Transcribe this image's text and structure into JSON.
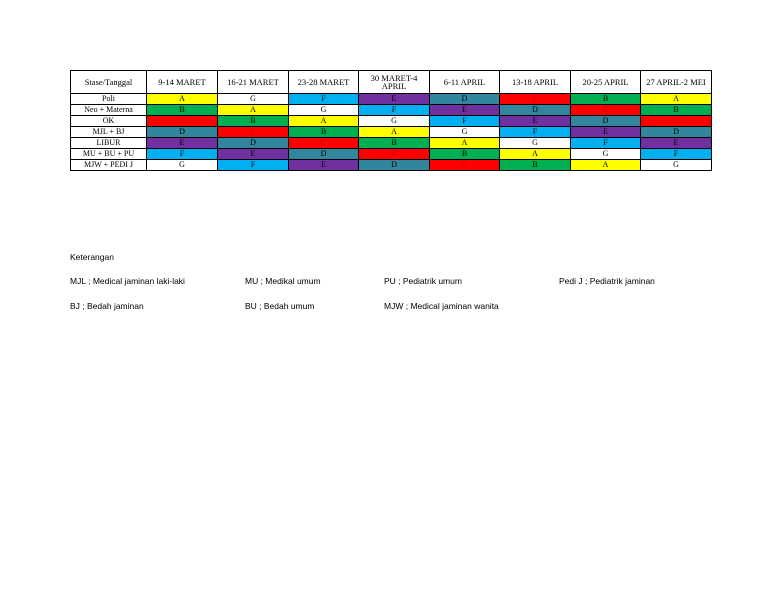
{
  "table": {
    "header": [
      "Stase/Tanggal",
      "9-14 MARET",
      "16-21 MARET",
      "23-28 MARET",
      "30 MARET-4 APRIL",
      "6-11 APRIL",
      "13-18 APRIL",
      "20-25 APRIL",
      "27 APRIL-2 MEI"
    ],
    "rows": [
      {
        "stase": "Poli",
        "cells": [
          "A",
          "G",
          "F",
          "E",
          "D",
          "C",
          "B",
          "A"
        ]
      },
      {
        "stase": "Neo + Materna",
        "cells": [
          "B",
          "A",
          "G",
          "F",
          "E",
          "D",
          "C",
          "B"
        ]
      },
      {
        "stase": "OK",
        "cells": [
          "C",
          "B",
          "A",
          "G",
          "F",
          "E",
          "D",
          "C"
        ]
      },
      {
        "stase": "MJL + BJ",
        "cells": [
          "D",
          "C",
          "B",
          "A",
          "G",
          "F",
          "E",
          "D"
        ]
      },
      {
        "stase": "LIBUR",
        "cells": [
          "E",
          "D",
          "C",
          "B",
          "A",
          "G",
          "F",
          "E"
        ]
      },
      {
        "stase": "MU + BU + PU",
        "cells": [
          "F",
          "E",
          "D",
          "C",
          "B",
          "A",
          "G",
          "F"
        ]
      },
      {
        "stase": "MJW + PEDI J",
        "cells": [
          "G",
          "F",
          "E",
          "D",
          "C",
          "B",
          "A",
          "G"
        ]
      }
    ],
    "group_colors": {
      "A": "#ffff00",
      "B": "#00b050",
      "C": "#ff0000",
      "D": "#31859c",
      "E": "#7030a0",
      "F": "#00b0f0",
      "G": "#ffffff"
    }
  },
  "legend": {
    "title": "Keterangan",
    "items": [
      "MJL ; Medical jaminan laki-laki",
      "MU ; Medikal umum",
      "PU ; Pediatrik umum",
      "Pedi J ; Pediatrik jaminan",
      "BJ ; Bedah jaminan",
      "BU ; Bedah umum",
      "MJW ; Medical jaminan wanita"
    ]
  }
}
